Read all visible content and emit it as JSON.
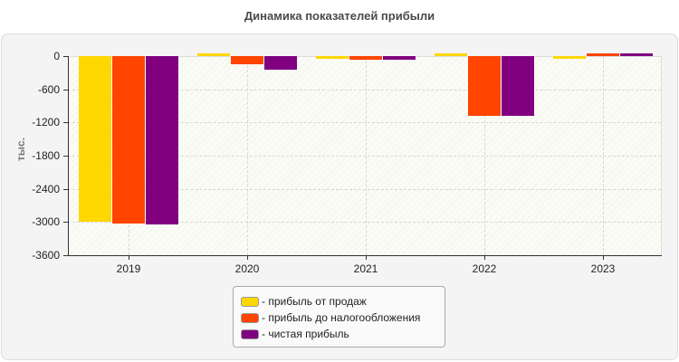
{
  "title": "Динамика показателей прибыли",
  "chart_data": {
    "type": "bar",
    "title": "Динамика показателей прибыли",
    "xlabel": "",
    "ylabel": "тыс.",
    "ylim": [
      -3600,
      0
    ],
    "yticks": [
      0,
      -600,
      -1200,
      -1800,
      -2400,
      -3000,
      -3600
    ],
    "categories": [
      "2019",
      "2020",
      "2021",
      "2022",
      "2023"
    ],
    "grid": true,
    "legend_position": "bottom",
    "series": [
      {
        "name": "- прибыль от продаж",
        "color": "#FFD700",
        "values": [
          -3000,
          20,
          -50,
          20,
          -30
        ]
      },
      {
        "name": "- прибыль до налогообложения",
        "color": "#FF4500",
        "values": [
          -3020,
          -150,
          -70,
          -1080,
          20
        ]
      },
      {
        "name": "- чистая прибыль",
        "color": "#800080",
        "values": [
          -3040,
          -250,
          -70,
          -1080,
          20
        ]
      }
    ]
  },
  "axis": {
    "y_labels": [
      "0",
      "-600",
      "-1200",
      "-1800",
      "-2400",
      "-3000",
      "-3600"
    ],
    "x_labels": [
      "2019",
      "2020",
      "2021",
      "2022",
      "2023"
    ],
    "y_title": "тыс."
  },
  "legend": {
    "items": [
      {
        "label": "- прибыль от продаж",
        "color": "#FFD700"
      },
      {
        "label": "- прибыль до налогообложения",
        "color": "#FF4500"
      },
      {
        "label": "- чистая прибыль",
        "color": "#800080"
      }
    ]
  }
}
